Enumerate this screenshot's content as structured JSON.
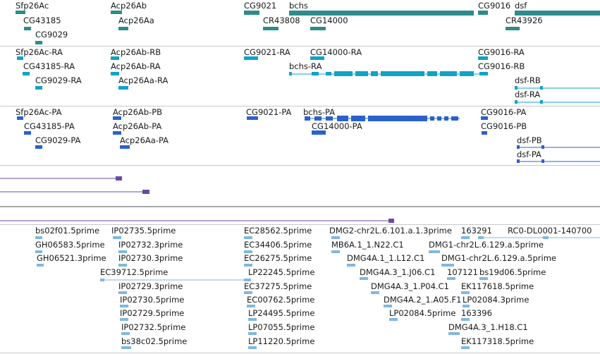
{
  "colors": {
    "gene": "#2e8b8b",
    "rna": "#0fa3c8",
    "protein": "#2a62cc",
    "alignment": "#6a4aa8",
    "est": "#7fb8de",
    "separator": "#c8c8c8"
  },
  "genes": [
    {
      "label": "Sfp26Ac"
    },
    {
      "label": "Acp26Ab"
    },
    {
      "label": "CG9021"
    },
    {
      "label": "bchs"
    },
    {
      "label": "CG9016"
    },
    {
      "label": "dsf"
    },
    {
      "label": "CG43185"
    },
    {
      "label": "Acp26Aa"
    },
    {
      "label": "CR43808"
    },
    {
      "label": "CG14000"
    },
    {
      "label": "CR43926"
    },
    {
      "label": "CG9029"
    }
  ],
  "transcripts": [
    {
      "label": "Sfp26Ac-RA"
    },
    {
      "label": "Acp26Ab-RB"
    },
    {
      "label": "CG9021-RA"
    },
    {
      "label": "CG14000-RA"
    },
    {
      "label": "CG9016-RA"
    },
    {
      "label": "CG43185-RA"
    },
    {
      "label": "Acp26Ab-RA"
    },
    {
      "label": "bchs-RA"
    },
    {
      "label": "CG9016-RB"
    },
    {
      "label": "CG9029-RA"
    },
    {
      "label": "Acp26Aa-RA"
    },
    {
      "label": "dsf-RB"
    },
    {
      "label": "dsf-RA"
    }
  ],
  "proteins": [
    {
      "label": "Sfp26Ac-PA"
    },
    {
      "label": "Acp26Ab-PB"
    },
    {
      "label": "CG9021-PA"
    },
    {
      "label": "bchs-PA"
    },
    {
      "label": "CG9016-PA"
    },
    {
      "label": "CG43185-PA"
    },
    {
      "label": "Acp26Ab-PA"
    },
    {
      "label": "CG14000-PA"
    },
    {
      "label": "CG9016-PB"
    },
    {
      "label": "CG9029-PA"
    },
    {
      "label": "Acp26Aa-PA"
    },
    {
      "label": "dsf-PB"
    },
    {
      "label": "dsf-PA"
    }
  ],
  "ests": [
    {
      "label": "bs02f01.5prime"
    },
    {
      "label": "IP02735.5prime"
    },
    {
      "label": "EC28562.5prime"
    },
    {
      "label": "DMG2-chr2L.6.101.a.1.3prime"
    },
    {
      "label": "163291"
    },
    {
      "label": "RC0-DL0001-140700"
    },
    {
      "label": "GH06583.5prime"
    },
    {
      "label": "IP02732.3prime"
    },
    {
      "label": "EC34406.5prime"
    },
    {
      "label": "MB6A.1_1.N22.C1"
    },
    {
      "label": "DMG1-chr2L.6.129.a.5prime"
    },
    {
      "label": "GH06521.3prime"
    },
    {
      "label": "IP02730.3prime"
    },
    {
      "label": "EC26275.5prime"
    },
    {
      "label": "DMG4A.1_1.L12.C1"
    },
    {
      "label": "DMG1-chr2L.6.129.a.5prime"
    },
    {
      "label": "EC39712.5prime"
    },
    {
      "label": "LP22245.5prime"
    },
    {
      "label": "DMG4A.3_1.J06.C1"
    },
    {
      "label": "107121"
    },
    {
      "label": "bs19d06.5prime"
    },
    {
      "label": "IP02729.3prime"
    },
    {
      "label": "EC37275.5prime"
    },
    {
      "label": "DMG4A.3_1.P04.C1"
    },
    {
      "label": "EK117618.5prime"
    },
    {
      "label": "IP02730.5prime"
    },
    {
      "label": "EC00762.5prime"
    },
    {
      "label": "DMG4A.2_1.A05.F1"
    },
    {
      "label": "LP02084.3prime"
    },
    {
      "label": "IP02729.5prime"
    },
    {
      "label": "LP24495.5prime"
    },
    {
      "label": "LP02084.5prime"
    },
    {
      "label": "163396"
    },
    {
      "label": "IP02732.5prime"
    },
    {
      "label": "LP07055.5prime"
    },
    {
      "label": "DMG4A.3_1.H18.C1"
    },
    {
      "label": "bs38c02.5prime"
    },
    {
      "label": "LP11220.5prime"
    },
    {
      "label": "EK117318.5prime"
    }
  ]
}
